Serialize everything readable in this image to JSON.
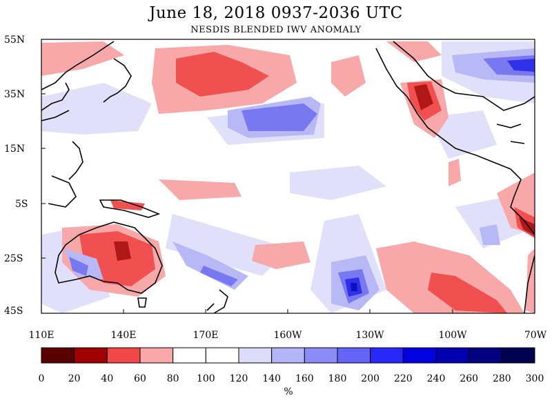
{
  "title": "June 18, 2018  0937-2036 UTC",
  "subtitle": "NESDIS BLENDED IWV ANOMALY",
  "lat_labels": [
    "55N",
    "35N",
    "15N",
    "5S",
    "25S",
    "45S"
  ],
  "lon_labels": [
    "110E",
    "140E",
    "170E",
    "160W",
    "130W",
    "100W",
    "70W"
  ],
  "colorbar": {
    "ticks": [
      "0",
      "20",
      "40",
      "60",
      "80",
      "100",
      "120",
      "140",
      "160",
      "180",
      "200",
      "220",
      "240",
      "260",
      "280",
      "300"
    ],
    "colors": [
      "#5a0000",
      "#a00000",
      "#f04848",
      "#f8a8a8",
      "#ffffff",
      "#ffffff",
      "#dcdcf8",
      "#b4b4f8",
      "#8c8cf8",
      "#6464f8",
      "#2828f8",
      "#0000e0",
      "#0000b0",
      "#000080",
      "#000050"
    ],
    "unit": "%"
  },
  "palette": {
    "red_light": "#f8a8a8",
    "red": "#f05050",
    "red_dark": "#b01818",
    "blue_faint": "#e0e0fa",
    "blue_light": "#b8b8f6",
    "blue": "#7878f0",
    "blue_dark": "#3030e8",
    "blue_deep": "#1010c0"
  }
}
